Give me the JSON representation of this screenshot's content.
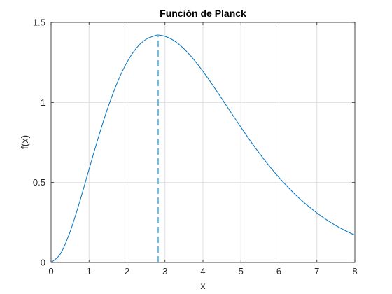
{
  "chart_data": {
    "type": "line",
    "title": "Función de Planck",
    "xlabel": "x",
    "ylabel": "f(x)",
    "xlim": [
      0,
      8
    ],
    "ylim": [
      0,
      1.5
    ],
    "xticks": [
      0,
      1,
      2,
      3,
      4,
      5,
      6,
      7,
      8
    ],
    "yticks": [
      0,
      0.5,
      1,
      1.5
    ],
    "xtick_labels": [
      "0",
      "1",
      "2",
      "3",
      "4",
      "5",
      "6",
      "7",
      "8"
    ],
    "ytick_labels": [
      "0",
      "0.5",
      "1",
      "1.5"
    ],
    "grid": true,
    "box": true,
    "series": [
      {
        "style": "solid",
        "color": "#0072bd",
        "x": [
          0,
          0.25,
          0.5,
          0.75,
          1,
          1.25,
          1.5,
          1.75,
          2,
          2.25,
          2.5,
          2.75,
          2.82,
          3,
          3.25,
          3.5,
          3.75,
          4,
          4.25,
          4.5,
          4.75,
          5,
          5.25,
          5.5,
          5.75,
          6,
          6.25,
          6.5,
          6.75,
          7,
          7.25,
          7.5,
          7.75,
          8
        ],
        "y": [
          0,
          0.055,
          0.192,
          0.377,
          0.582,
          0.785,
          0.97,
          1.127,
          1.251,
          1.34,
          1.394,
          1.418,
          1.421,
          1.413,
          1.384,
          1.335,
          1.27,
          1.194,
          1.11,
          1.022,
          0.933,
          0.845,
          0.759,
          0.678,
          0.602,
          0.532,
          0.468,
          0.409,
          0.357,
          0.31,
          0.268,
          0.231,
          0.199,
          0.171
        ]
      },
      {
        "style": "dashed",
        "color": "#4dbeee",
        "x": [
          2.82,
          2.82
        ],
        "y": [
          0,
          1.421
        ]
      }
    ]
  }
}
